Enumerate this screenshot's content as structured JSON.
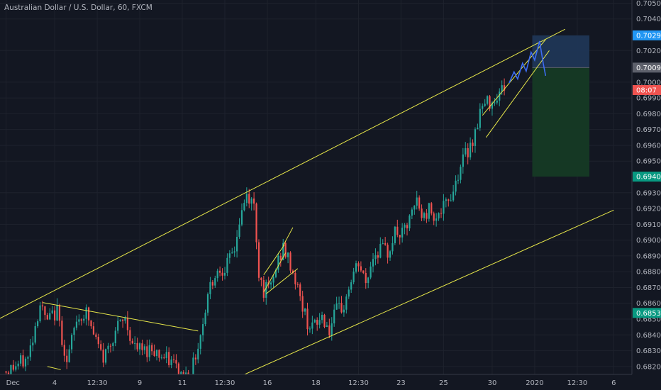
{
  "title": "Australian Dollar / U.S. Dollar, 60, FXCM",
  "chart_data": {
    "type": "candlestick",
    "title": "Australian Dollar / U.S. Dollar, 60, FXCM",
    "ylim": [
      0.6815,
      0.7052
    ],
    "y_ticks": [
      {
        "v": 0.705,
        "t": "0.70500"
      },
      {
        "v": 0.704,
        "t": "0.70400"
      },
      {
        "v": 0.702,
        "t": "0.70200"
      },
      {
        "v": 0.7,
        "t": "0.70000"
      },
      {
        "v": 0.699,
        "t": "0.69900"
      },
      {
        "v": 0.698,
        "t": "0.69800"
      },
      {
        "v": 0.697,
        "t": "0.69700"
      },
      {
        "v": 0.696,
        "t": "0.69600"
      },
      {
        "v": 0.695,
        "t": "0.69500"
      },
      {
        "v": 0.693,
        "t": "0.69300"
      },
      {
        "v": 0.692,
        "t": "0.69200"
      },
      {
        "v": 0.691,
        "t": "0.69100"
      },
      {
        "v": 0.69,
        "t": "0.69000"
      },
      {
        "v": 0.689,
        "t": "0.68900"
      },
      {
        "v": 0.688,
        "t": "0.68800"
      },
      {
        "v": 0.687,
        "t": "0.68700"
      },
      {
        "v": 0.686,
        "t": "0.68600"
      },
      {
        "v": 0.685,
        "t": "0.68500"
      },
      {
        "v": 0.684,
        "t": "0.68400"
      },
      {
        "v": 0.683,
        "t": "0.68300"
      },
      {
        "v": 0.682,
        "t": "0.68200"
      }
    ],
    "x_ticks": [
      {
        "x": 0,
        "t": "Dec"
      },
      {
        "x": 4,
        "t": "4"
      },
      {
        "x": 7.5,
        "t": "12:30"
      },
      {
        "x": 11,
        "t": "9"
      },
      {
        "x": 14.5,
        "t": "11"
      },
      {
        "x": 18,
        "t": "12:30"
      },
      {
        "x": 21.5,
        "t": "16"
      },
      {
        "x": 25.5,
        "t": "18"
      },
      {
        "x": 29,
        "t": "12:30"
      },
      {
        "x": 32.5,
        "t": "23"
      },
      {
        "x": 36,
        "t": "25"
      },
      {
        "x": 40,
        "t": "30"
      },
      {
        "x": 43.5,
        "t": "2020"
      },
      {
        "x": 47,
        "t": "12:30"
      },
      {
        "x": 50,
        "t": "6"
      }
    ],
    "badges": [
      {
        "v": 0.70296,
        "t": "0.70296",
        "color": "#2196f3"
      },
      {
        "v": 0.70092,
        "t": "0.70092",
        "color": "#5d606b"
      },
      {
        "v": 0.6995,
        "t": "08:07",
        "color": "#ef5350"
      },
      {
        "v": 0.69402,
        "t": "0.69402",
        "color": "#089981"
      },
      {
        "v": 0.68539,
        "t": "0.68539",
        "color": "#089981"
      }
    ],
    "price_path": [
      [
        0,
        0.6817
      ],
      [
        1.8,
        0.6825
      ],
      [
        2.8,
        0.686
      ],
      [
        3.3,
        0.6848
      ],
      [
        4.2,
        0.6855
      ],
      [
        5,
        0.6822
      ],
      [
        5.8,
        0.685
      ],
      [
        6.6,
        0.6854
      ],
      [
        7.2,
        0.684
      ],
      [
        8,
        0.6825
      ],
      [
        9,
        0.6843
      ],
      [
        9.8,
        0.685
      ],
      [
        10.5,
        0.6832
      ],
      [
        11.3,
        0.683
      ],
      [
        12,
        0.6832
      ],
      [
        13,
        0.6825
      ],
      [
        13.8,
        0.6822
      ],
      [
        14.3,
        0.6815
      ],
      [
        15.2,
        0.6815
      ],
      [
        16,
        0.684
      ],
      [
        16.7,
        0.687
      ],
      [
        17.3,
        0.688
      ],
      [
        18.3,
        0.6885
      ],
      [
        18.8,
        0.6895
      ],
      [
        19.3,
        0.6915
      ],
      [
        19.8,
        0.6928
      ],
      [
        20.4,
        0.6922
      ],
      [
        20.8,
        0.688
      ],
      [
        21.2,
        0.6868
      ],
      [
        21.8,
        0.687
      ],
      [
        22.3,
        0.6885
      ],
      [
        22.8,
        0.6895
      ],
      [
        23.3,
        0.6886
      ],
      [
        23.8,
        0.6875
      ],
      [
        24.3,
        0.686
      ],
      [
        24.8,
        0.6848
      ],
      [
        25.4,
        0.6845
      ],
      [
        26,
        0.6852
      ],
      [
        26.6,
        0.6843
      ],
      [
        27.2,
        0.6855
      ],
      [
        27.8,
        0.6858
      ],
      [
        28.4,
        0.6875
      ],
      [
        29,
        0.6885
      ],
      [
        29.6,
        0.6872
      ],
      [
        30.2,
        0.689
      ],
      [
        30.8,
        0.6895
      ],
      [
        31.4,
        0.6892
      ],
      [
        32,
        0.6905
      ],
      [
        32.6,
        0.6903
      ],
      [
        33.2,
        0.6912
      ],
      [
        33.8,
        0.6925
      ],
      [
        34.3,
        0.6913
      ],
      [
        34.8,
        0.692
      ],
      [
        35.5,
        0.6915
      ],
      [
        36.2,
        0.6922
      ],
      [
        36.8,
        0.6932
      ],
      [
        37.4,
        0.6948
      ],
      [
        38,
        0.6957
      ],
      [
        38.6,
        0.6968
      ],
      [
        39,
        0.6982
      ],
      [
        39.6,
        0.6987
      ],
      [
        40.2,
        0.699
      ],
      [
        40.7,
        0.6995
      ],
      [
        41.2,
        0.6999
      ]
    ],
    "trendlines": [
      {
        "x1": -1,
        "y1": 0.68485,
        "x2": 46,
        "y2": 0.70335
      },
      {
        "x1": 3,
        "y1": 0.68605,
        "x2": 15.8,
        "y2": 0.68425
      },
      {
        "x1": 17,
        "y1": 0.6806,
        "x2": 50,
        "y2": 0.6919
      },
      {
        "x1": 3.4,
        "y1": 0.682,
        "x2": 4.5,
        "y2": 0.6818
      },
      {
        "x1": 21.2,
        "y1": 0.6867,
        "x2": 23,
        "y2": 0.6892
      },
      {
        "x1": 21.2,
        "y1": 0.6878,
        "x2": 22.9,
        "y2": 0.6897
      },
      {
        "x1": 22.8,
        "y1": 0.68965,
        "x2": 23.6,
        "y2": 0.6908
      },
      {
        "x1": 21.4,
        "y1": 0.6866,
        "x2": 24,
        "y2": 0.6882
      },
      {
        "x1": 39.2,
        "y1": 0.6979,
        "x2": 44.4,
        "y2": 0.7027
      },
      {
        "x1": 39.5,
        "y1": 0.6965,
        "x2": 44.7,
        "y2": 0.702
      }
    ],
    "projection": [
      [
        41.4,
        0.69995
      ],
      [
        41.8,
        0.70065
      ],
      [
        42.1,
        0.7002
      ],
      [
        42.5,
        0.7012
      ],
      [
        42.8,
        0.7007
      ],
      [
        43.2,
        0.7019
      ],
      [
        43.5,
        0.7014
      ],
      [
        43.9,
        0.7026
      ],
      [
        44.2,
        0.7012
      ],
      [
        44.4,
        0.7004
      ]
    ],
    "position": {
      "x1": 43.3,
      "x2": 48.0,
      "entry": 0.70092,
      "stop": 0.70296,
      "target": 0.69402
    },
    "colors": {
      "up": "#26a69a",
      "down": "#ef5350",
      "trendline": "#e8e84a",
      "projection": "#3d6df2",
      "stop_zone": "#1f3656",
      "target_zone": "#153a25",
      "grid": "#1e222d"
    }
  }
}
